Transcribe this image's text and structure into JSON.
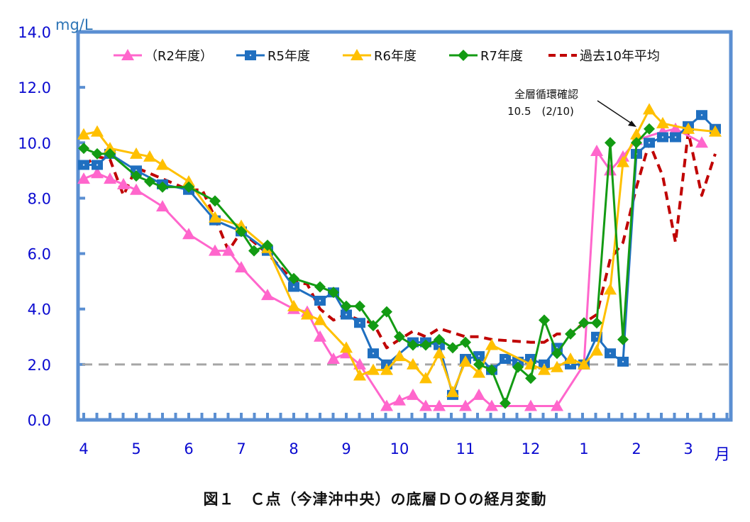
{
  "chart_data": {
    "type": "line",
    "title": "図１　Ｃ点（今津沖中央）の底層ＤＯの経月変動",
    "ylabel": "mg/L",
    "xlabel": "月",
    "ylim": [
      0,
      14
    ],
    "yticks": [
      "0.0",
      "2.0",
      "4.0",
      "6.0",
      "8.0",
      "10.0",
      "12.0",
      "14.0"
    ],
    "xticks": [
      "4",
      "5",
      "6",
      "7",
      "8",
      "9",
      "10",
      "11",
      "12",
      "1",
      "2",
      "3"
    ],
    "grid": false,
    "legend_position": "top-inside",
    "reference_line": {
      "value": 2.0,
      "style": "dashed",
      "color": "#a6a6a6"
    },
    "annotation": {
      "line1": "全層循環確認",
      "line2": "10.5　(2/10)",
      "points_to": {
        "month": "2",
        "value": 10.5
      }
    },
    "series": [
      {
        "name": "（R2年度）",
        "color": "#ff66cc",
        "marker": "triangle",
        "style": "solid",
        "points": [
          [
            118,
            8.7
          ],
          [
            137,
            8.9
          ],
          [
            155,
            8.7
          ],
          [
            174,
            8.5
          ],
          [
            192,
            8.3
          ],
          [
            229,
            7.7
          ],
          [
            266,
            6.7
          ],
          [
            303,
            6.1
          ],
          [
            322,
            6.1
          ],
          [
            340,
            5.5
          ],
          [
            377,
            4.5
          ],
          [
            414,
            4.0
          ],
          [
            433,
            3.9
          ],
          [
            451,
            3.0
          ],
          [
            470,
            2.2
          ],
          [
            488,
            2.4
          ],
          [
            507,
            2.0
          ],
          [
            545,
            0.5
          ],
          [
            563,
            0.7
          ],
          [
            582,
            0.9
          ],
          [
            600,
            0.5
          ],
          [
            619,
            0.5
          ],
          [
            656,
            0.5
          ],
          [
            675,
            0.9
          ],
          [
            693,
            0.5
          ],
          [
            748,
            0.5
          ],
          [
            785,
            0.5
          ],
          [
            823,
            2.0
          ],
          [
            841,
            9.7
          ],
          [
            860,
            9.0
          ],
          [
            878,
            9.5
          ],
          [
            897,
            10.1
          ],
          [
            934,
            10.4
          ],
          [
            952,
            10.5
          ],
          [
            989,
            10.0
          ]
        ]
      },
      {
        "name": "R5年度",
        "color": "#1f6fc0",
        "marker": "square",
        "style": "solid",
        "points": [
          [
            118,
            9.2
          ],
          [
            137,
            9.2
          ],
          [
            155,
            9.6
          ],
          [
            192,
            9.0
          ],
          [
            229,
            8.5
          ],
          [
            266,
            8.3
          ],
          [
            303,
            7.2
          ],
          [
            340,
            6.8
          ],
          [
            377,
            6.1
          ],
          [
            414,
            4.8
          ],
          [
            451,
            4.3
          ],
          [
            470,
            4.6
          ],
          [
            488,
            3.8
          ],
          [
            507,
            3.5
          ],
          [
            526,
            2.4
          ],
          [
            545,
            2.0
          ],
          [
            582,
            2.8
          ],
          [
            600,
            2.8
          ],
          [
            619,
            2.7
          ],
          [
            638,
            0.9
          ],
          [
            656,
            2.2
          ],
          [
            675,
            2.3
          ],
          [
            693,
            1.8
          ],
          [
            712,
            2.2
          ],
          [
            730,
            2.1
          ],
          [
            748,
            2.2
          ],
          [
            767,
            2.0
          ],
          [
            785,
            2.6
          ],
          [
            804,
            2.0
          ],
          [
            823,
            2.0
          ],
          [
            841,
            3.0
          ],
          [
            860,
            2.4
          ],
          [
            878,
            2.1
          ],
          [
            897,
            9.6
          ],
          [
            915,
            10.0
          ],
          [
            934,
            10.2
          ],
          [
            952,
            10.2
          ],
          [
            970,
            10.6
          ],
          [
            989,
            11.0
          ],
          [
            1008,
            10.5
          ]
        ]
      },
      {
        "name": "R6年度",
        "color": "#ffc000",
        "marker": "triangle",
        "style": "solid",
        "points": [
          [
            118,
            10.3
          ],
          [
            137,
            10.4
          ],
          [
            155,
            9.8
          ],
          [
            192,
            9.6
          ],
          [
            211,
            9.5
          ],
          [
            229,
            9.2
          ],
          [
            266,
            8.6
          ],
          [
            303,
            7.3
          ],
          [
            340,
            7.0
          ],
          [
            377,
            6.2
          ],
          [
            414,
            4.1
          ],
          [
            433,
            3.8
          ],
          [
            451,
            3.6
          ],
          [
            488,
            2.6
          ],
          [
            507,
            1.6
          ],
          [
            526,
            1.8
          ],
          [
            545,
            1.8
          ],
          [
            563,
            2.3
          ],
          [
            582,
            2.0
          ],
          [
            600,
            1.5
          ],
          [
            619,
            2.4
          ],
          [
            638,
            1.0
          ],
          [
            656,
            2.1
          ],
          [
            675,
            1.7
          ],
          [
            693,
            2.7
          ],
          [
            748,
            2.0
          ],
          [
            767,
            1.8
          ],
          [
            785,
            1.9
          ],
          [
            804,
            2.2
          ],
          [
            823,
            2.0
          ],
          [
            841,
            2.5
          ],
          [
            860,
            4.7
          ],
          [
            878,
            9.3
          ],
          [
            897,
            10.3
          ],
          [
            915,
            11.2
          ],
          [
            934,
            10.7
          ],
          [
            970,
            10.5
          ],
          [
            1008,
            10.4
          ]
        ]
      },
      {
        "name": "R7年度",
        "color": "#139b13",
        "marker": "diamond",
        "style": "solid",
        "points": [
          [
            118,
            9.8
          ],
          [
            137,
            9.6
          ],
          [
            155,
            9.6
          ],
          [
            192,
            8.8
          ],
          [
            211,
            8.6
          ],
          [
            229,
            8.4
          ],
          [
            266,
            8.4
          ],
          [
            303,
            7.9
          ],
          [
            340,
            6.8
          ],
          [
            358,
            6.1
          ],
          [
            377,
            6.3
          ],
          [
            414,
            5.1
          ],
          [
            451,
            4.8
          ],
          [
            470,
            4.6
          ],
          [
            488,
            4.1
          ],
          [
            507,
            4.1
          ],
          [
            526,
            3.4
          ],
          [
            545,
            3.9
          ],
          [
            563,
            3.0
          ],
          [
            582,
            2.7
          ],
          [
            600,
            2.7
          ],
          [
            619,
            2.9
          ],
          [
            638,
            2.6
          ],
          [
            656,
            2.8
          ],
          [
            675,
            2.0
          ],
          [
            693,
            1.8
          ],
          [
            712,
            0.6
          ],
          [
            730,
            1.9
          ],
          [
            748,
            1.5
          ],
          [
            767,
            3.6
          ],
          [
            785,
            2.4
          ],
          [
            804,
            3.1
          ],
          [
            823,
            3.5
          ],
          [
            841,
            3.5
          ],
          [
            860,
            10.0
          ],
          [
            878,
            2.9
          ],
          [
            897,
            10.0
          ],
          [
            915,
            10.5
          ]
        ]
      },
      {
        "name": "過去10年平均",
        "color": "#c00000",
        "marker": "none",
        "style": "dashed",
        "points": [
          [
            118,
            9.2
          ],
          [
            137,
            9.5
          ],
          [
            155,
            9.4
          ],
          [
            174,
            8.1
          ],
          [
            192,
            9.1
          ],
          [
            229,
            8.7
          ],
          [
            266,
            8.3
          ],
          [
            285,
            8.3
          ],
          [
            303,
            7.3
          ],
          [
            322,
            6.1
          ],
          [
            340,
            6.8
          ],
          [
            377,
            6.0
          ],
          [
            414,
            5.0
          ],
          [
            433,
            4.9
          ],
          [
            451,
            4.0
          ],
          [
            470,
            3.6
          ],
          [
            488,
            3.8
          ],
          [
            507,
            3.6
          ],
          [
            526,
            3.5
          ],
          [
            545,
            2.6
          ],
          [
            563,
            2.9
          ],
          [
            582,
            3.2
          ],
          [
            600,
            3.0
          ],
          [
            619,
            3.3
          ],
          [
            656,
            3.0
          ],
          [
            675,
            3.0
          ],
          [
            693,
            2.9
          ],
          [
            748,
            2.8
          ],
          [
            767,
            2.8
          ],
          [
            785,
            3.1
          ],
          [
            804,
            3.1
          ],
          [
            823,
            3.5
          ],
          [
            841,
            3.8
          ],
          [
            860,
            5.8
          ],
          [
            878,
            6.4
          ],
          [
            897,
            8.4
          ],
          [
            915,
            10.0
          ],
          [
            934,
            8.8
          ],
          [
            952,
            6.4
          ],
          [
            970,
            10.4
          ],
          [
            989,
            8.1
          ],
          [
            1008,
            9.6
          ]
        ]
      }
    ]
  },
  "axis": {
    "unit": "mg/L",
    "month_unit": "月"
  },
  "legend": [
    {
      "label": "（R2年度）"
    },
    {
      "label": "R5年度"
    },
    {
      "label": "R6年度"
    },
    {
      "label": "R7年度"
    },
    {
      "label": "過去10年平均"
    }
  ],
  "caption": "図１　Ｃ点（今津沖中央）の底層ＤＯの経月変動"
}
